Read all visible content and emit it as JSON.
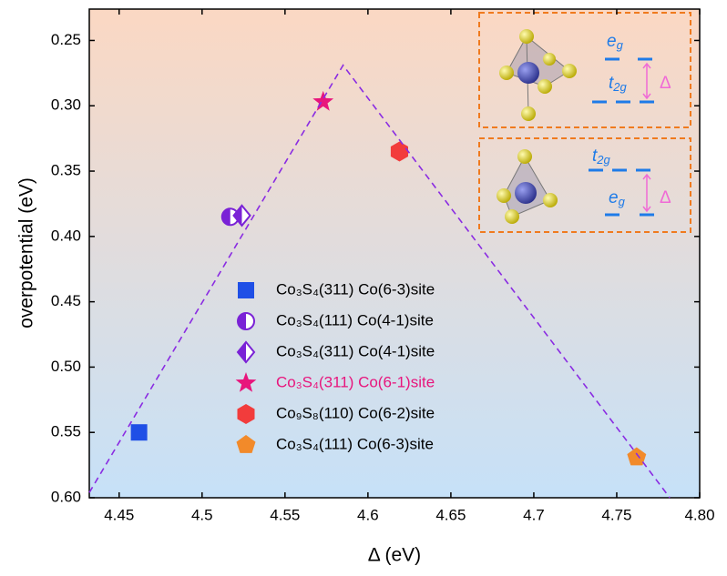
{
  "chart_data": {
    "type": "scatter",
    "x_label": "Δ (eV)",
    "y_label": "overpotential (eV)",
    "xlim": [
      4.432,
      4.8
    ],
    "xticks": [
      4.45,
      4.5,
      4.55,
      4.6,
      4.65,
      4.7,
      4.75,
      {
        "value": 4.8,
        "label": "4.80"
      }
    ],
    "ylim": [
      0.226,
      0.6
    ],
    "y_inverted": true,
    "yticks": [
      0.25,
      {
        "value": 0.3,
        "label": "0.30"
      },
      0.35,
      {
        "value": 0.4,
        "label": "0.40"
      },
      0.45,
      {
        "value": 0.5,
        "label": "0.50"
      },
      0.55,
      {
        "value": 0.6,
        "label": "0.60"
      }
    ],
    "series": [
      {
        "name": "Co₃S₄(311) Co(6-3)site",
        "color": "#1f4fe6",
        "marker": "square",
        "x": [
          4.462
        ],
        "values": [
          0.55
        ]
      },
      {
        "name": "Co₃S₄(111) Co(4-1)site",
        "color": "#7a22d6",
        "marker": "half-circle",
        "x": [
          4.517
        ],
        "values": [
          0.385
        ]
      },
      {
        "name": "Co₃S₄(311) Co(4-1)site",
        "color": "#7a22d6",
        "marker": "half-diamond",
        "x": [
          4.524
        ],
        "values": [
          0.384
        ]
      },
      {
        "name": "Co₃S₄(311) Co(6-1)site",
        "color": "#e8157c",
        "marker": "star",
        "x": [
          4.573
        ],
        "values": [
          0.297
        ],
        "label_color": "#e8157c"
      },
      {
        "name": "Co₉S₈(110) Co(6-2)site",
        "color": "#f23c3c",
        "marker": "hexagon",
        "x": [
          4.619
        ],
        "values": [
          0.335
        ]
      },
      {
        "name": "Co₃S₄(111) Co(6-3)site",
        "color": "#f28a2a",
        "marker": "pentagon",
        "x": [
          4.762
        ],
        "values": [
          0.569
        ]
      },
      {
        "color": "#8a2be2",
        "marker": "dashed-line",
        "x": [
          4.432,
          4.585,
          4.782
        ],
        "values": [
          0.596,
          0.269,
          0.6
        ]
      }
    ],
    "annotations": [
      {
        "base": "e",
        "sub": "g"
      },
      {
        "base": "t",
        "sub": "2g"
      },
      "Δ",
      {
        "base": "t",
        "sub": "2g"
      },
      {
        "base": "e",
        "sub": "g"
      },
      "Δ"
    ]
  }
}
